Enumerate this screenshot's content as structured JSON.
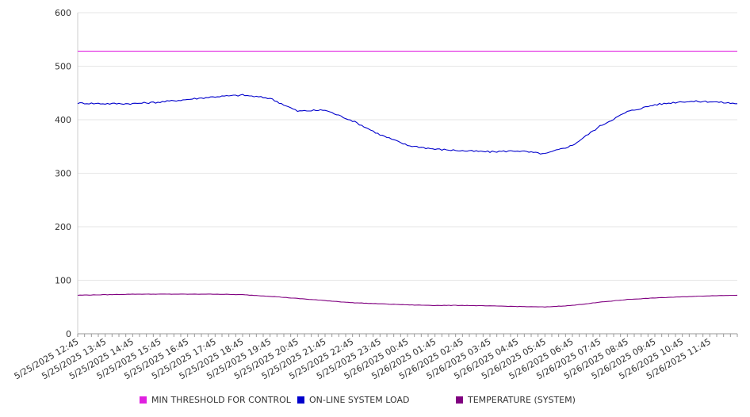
{
  "chart_data": {
    "type": "line",
    "ylim": [
      0,
      600
    ],
    "yticks": [
      0,
      100,
      200,
      300,
      400,
      500,
      600
    ],
    "grid": true,
    "legend_position": "bottom",
    "x_tick_labels": [
      "5/25/2025 12:45",
      "5/25/2025 13:45",
      "5/25/2025 14:45",
      "5/25/2025 15:45",
      "5/25/2025 16:45",
      "5/25/2025 17:45",
      "5/25/2025 18:45",
      "5/25/2025 19:45",
      "5/25/2025 20:45",
      "5/25/2025 21:45",
      "5/25/2025 22:45",
      "5/25/2025 23:45",
      "5/26/2025 00:45",
      "5/26/2025 01:45",
      "5/26/2025 02:45",
      "5/26/2025 03:45",
      "5/26/2025 04:45",
      "5/26/2025 05:45",
      "5/26/2025 06:45",
      "5/26/2025 07:45",
      "5/26/2025 08:45",
      "5/26/2025 09:45",
      "5/26/2025 10:45",
      "5/26/2025 11:45"
    ],
    "x": [
      "5/25/2025 12:45",
      "5/25/2025 13:45",
      "5/25/2025 14:45",
      "5/25/2025 15:45",
      "5/25/2025 16:45",
      "5/25/2025 17:45",
      "5/25/2025 18:45",
      "5/25/2025 19:45",
      "5/25/2025 20:45",
      "5/25/2025 21:45",
      "5/25/2025 22:45",
      "5/25/2025 23:45",
      "5/26/2025 00:45",
      "5/26/2025 01:45",
      "5/26/2025 02:45",
      "5/26/2025 03:45",
      "5/26/2025 04:45",
      "5/26/2025 05:45",
      "5/26/2025 06:45",
      "5/26/2025 07:45",
      "5/26/2025 08:45",
      "5/26/2025 09:45",
      "5/26/2025 10:45",
      "5/26/2025 11:45",
      "5/26/2025 12:45"
    ],
    "series": [
      {
        "name": "MIN THRESHOLD FOR CONTROL",
        "color": "#e020e0",
        "values": [
          528,
          528,
          528,
          528,
          528,
          528,
          528,
          528,
          528,
          528,
          528,
          528,
          528,
          528,
          528,
          528,
          528,
          528,
          528,
          528,
          528,
          528,
          528,
          528,
          528
        ]
      },
      {
        "name": "ON-LINE SYSTEM LOAD",
        "color": "#0000cc",
        "values": [
          431,
          430,
          430,
          433,
          438,
          443,
          446,
          440,
          416,
          418,
          398,
          372,
          352,
          345,
          342,
          340,
          342,
          336,
          352,
          388,
          415,
          428,
          434,
          434,
          430
        ]
      },
      {
        "name": "TEMPERATURE (SYSTEM)",
        "color": "#800080",
        "values": [
          72,
          73,
          74,
          74,
          74,
          74,
          73,
          70,
          66,
          62,
          58,
          56,
          54,
          53,
          53,
          52,
          51,
          50,
          53,
          59,
          64,
          67,
          69,
          71,
          72
        ]
      }
    ]
  }
}
